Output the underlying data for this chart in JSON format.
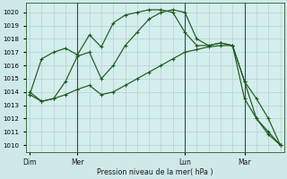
{
  "xlabel": "Pression niveau de la mer( hPa )",
  "background_color": "#cfe8e8",
  "plot_bg_color": "#d4eded",
  "grid_color": "#b0cccc",
  "line_color": "#1a5c1a",
  "ylim": [
    1009.5,
    1020.7
  ],
  "yticks": [
    1010,
    1011,
    1012,
    1013,
    1014,
    1015,
    1016,
    1017,
    1018,
    1019,
    1020
  ],
  "day_labels": [
    "Dim",
    "Mer",
    "Lun",
    "Mar"
  ],
  "day_positions": [
    0,
    4,
    13,
    18
  ],
  "vline_positions": [
    4,
    13,
    18
  ],
  "n_points": 22,
  "xlim": [
    -0.3,
    21.3
  ],
  "line1_x": [
    0,
    1,
    2,
    3,
    4,
    5,
    6,
    7,
    8,
    9,
    10,
    11,
    12,
    13,
    14,
    15,
    16,
    17,
    18,
    19,
    20,
    21
  ],
  "line1_y": [
    1013.8,
    1013.3,
    1013.5,
    1014.8,
    1016.7,
    1017.0,
    1015.0,
    1016.0,
    1017.5,
    1018.5,
    1019.5,
    1020.0,
    1020.2,
    1020.0,
    1018.0,
    1017.5,
    1017.7,
    1017.5,
    1014.8,
    1013.5,
    1012.0,
    1010.0
  ],
  "line2_x": [
    0,
    1,
    2,
    3,
    4,
    5,
    6,
    7,
    8,
    9,
    10,
    11,
    12,
    13,
    14,
    15,
    16,
    17,
    18,
    19,
    20,
    21
  ],
  "line2_y": [
    1013.8,
    1016.5,
    1017.0,
    1017.3,
    1016.8,
    1018.3,
    1017.4,
    1019.2,
    1019.8,
    1020.0,
    1020.2,
    1020.2,
    1020.0,
    1018.5,
    1017.5,
    1017.5,
    1017.7,
    1017.5,
    1014.8,
    1012.0,
    1011.0,
    1010.0
  ],
  "line3_x": [
    0,
    1,
    2,
    3,
    4,
    5,
    6,
    7,
    8,
    9,
    10,
    11,
    12,
    13,
    14,
    15,
    16,
    17,
    18,
    19,
    20,
    21
  ],
  "line3_y": [
    1014.0,
    1013.3,
    1013.5,
    1013.8,
    1014.2,
    1014.5,
    1013.8,
    1014.0,
    1014.5,
    1015.0,
    1015.5,
    1016.0,
    1016.5,
    1017.0,
    1017.2,
    1017.4,
    1017.5,
    1017.5,
    1013.5,
    1012.0,
    1010.8,
    1010.0
  ]
}
